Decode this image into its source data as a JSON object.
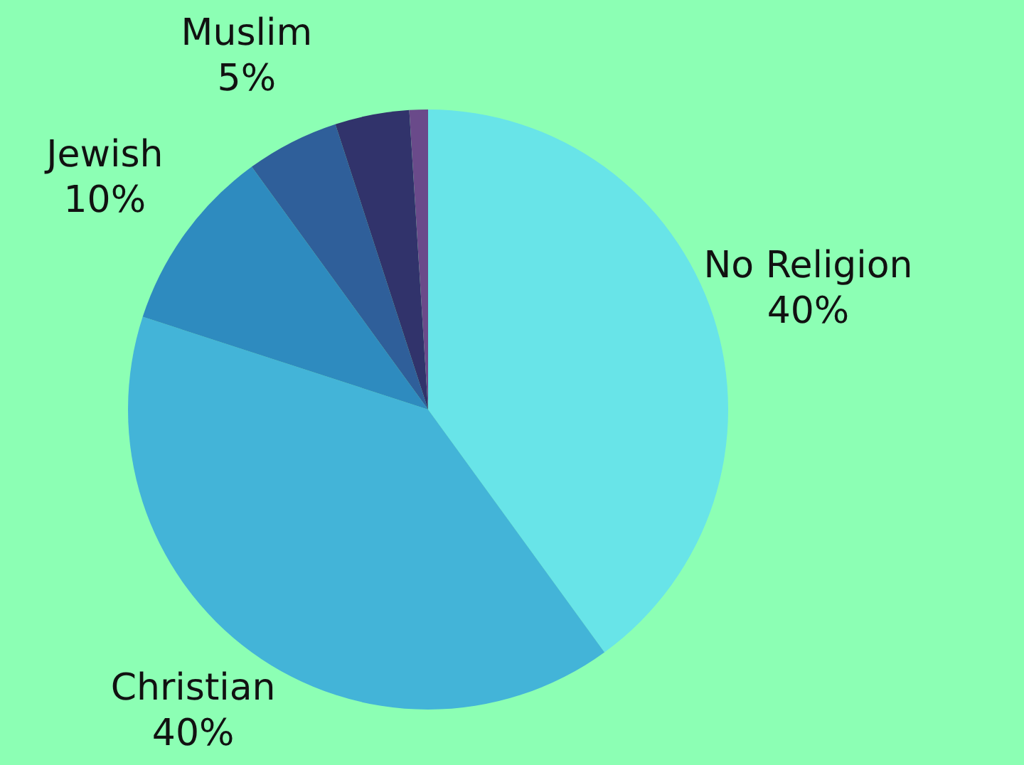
{
  "chart_data": {
    "type": "pie",
    "categories": [
      "No Religion",
      "Christian",
      "Jewish",
      "Muslim",
      null,
      null
    ],
    "values": [
      40,
      40,
      10,
      5,
      4,
      1
    ],
    "colors": [
      "#68e4e8",
      "#43b4d8",
      "#2e8bbf",
      "#2f5f9a",
      "#31336b",
      "#6a4a8a"
    ],
    "value_labels": [
      "40%",
      "40%",
      "10%",
      "5%",
      null,
      null
    ]
  }
}
